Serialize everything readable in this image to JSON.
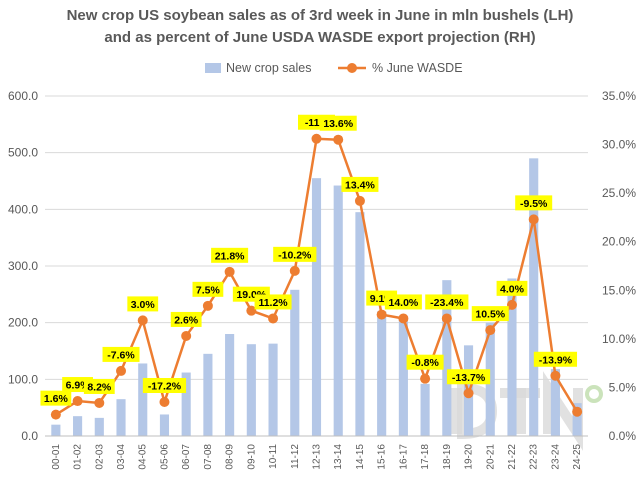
{
  "chart_data": {
    "type": "bar+line",
    "title": [
      "New crop US soybean sales as of 3rd week in June in mln bushels (LH)",
      "and as percent of June USDA WASDE export projection (RH)"
    ],
    "categories": [
      "00-01",
      "01-02",
      "02-03",
      "03-04",
      "04-05",
      "05-06",
      "06-07",
      "07-08",
      "08-09",
      "09-10",
      "10-11",
      "11-12",
      "12-13",
      "13-14",
      "14-15",
      "15-16",
      "16-17",
      "17-18",
      "18-19",
      "19-20",
      "20-21",
      "21-22",
      "22-23",
      "23-24",
      "24-25"
    ],
    "series": [
      {
        "name": "New crop sales",
        "type": "bar",
        "axis": "left",
        "values": [
          20,
          35,
          32,
          65,
          128,
          38,
          112,
          145,
          180,
          162,
          163,
          258,
          455,
          442,
          395,
          220,
          205,
          92,
          275,
          160,
          200,
          278,
          490,
          118,
          58
        ]
      },
      {
        "name": "% June WASDE",
        "type": "line",
        "axis": "right",
        "values": [
          2.2,
          3.6,
          3.4,
          6.7,
          11.9,
          3.5,
          10.3,
          13.4,
          16.9,
          12.9,
          12.1,
          17.0,
          30.6,
          30.5,
          24.2,
          12.5,
          12.1,
          5.9,
          12.1,
          4.4,
          10.9,
          13.5,
          22.3,
          6.2,
          2.5
        ],
        "point_labels": [
          "1.6%",
          "6.9%",
          "8.2%",
          "-7.6%",
          "3.0%",
          "-17.2%",
          "2.6%",
          "7.5%",
          "21.8%",
          "19.0%",
          "11.2%",
          "-10.2%",
          "-11.3",
          "13.6%",
          "13.4%",
          "9.1%",
          "14.0%",
          "-0.8%",
          "-23.4%",
          "-13.7%",
          "10.5%",
          "4.0%",
          "-9.5%",
          "-13.9%",
          ""
        ]
      }
    ],
    "ylim_left": [
      0,
      600
    ],
    "yticks_left": [
      "0.0",
      "100.0",
      "200.0",
      "300.0",
      "400.0",
      "500.0",
      "600.0"
    ],
    "ylim_right": [
      0,
      35
    ],
    "yticks_right": [
      "0.0%",
      "5.0%",
      "10.0%",
      "15.0%",
      "20.0%",
      "25.0%",
      "30.0%",
      "35.0%"
    ],
    "grid": "horizontal",
    "legend_position": "top",
    "watermark": "DTN",
    "colors": {
      "bar": "#b4c7e7",
      "line": "#ed7d31",
      "label_bg": "#ffff00",
      "grid": "#d9d9d9",
      "axis_text": "#595959"
    }
  }
}
